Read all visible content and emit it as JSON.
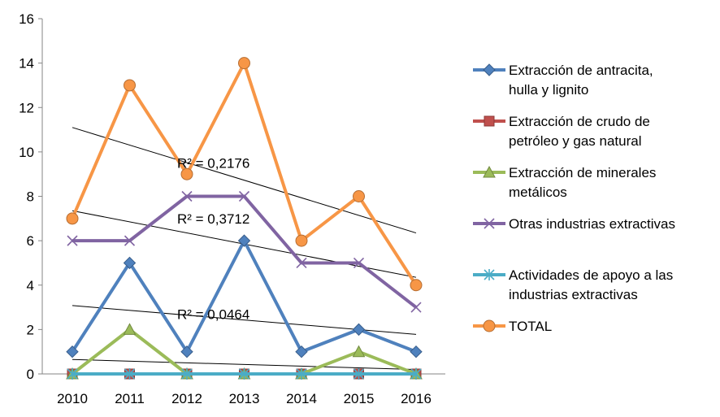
{
  "chart_data": {
    "type": "line",
    "x": [
      "2010",
      "2011",
      "2012",
      "2013",
      "2014",
      "2015",
      "2016"
    ],
    "ylim": [
      0,
      16
    ],
    "yticks": [
      "0",
      "2",
      "4",
      "6",
      "8",
      "10",
      "12",
      "14",
      "16"
    ],
    "grid": false,
    "legend_position": "right",
    "series": [
      {
        "name": "Extracción de antracita, hulla y lignito",
        "legend_lines": [
          "Extracción de antracita,",
          "hulla y lignito"
        ],
        "values": [
          1,
          5,
          1,
          6,
          1,
          2,
          1
        ],
        "color": "#4F81BD",
        "marker": "diamond"
      },
      {
        "name": "Extracción de crudo de petróleo y gas natural",
        "legend_lines": [
          " Extracción de crudo de",
          "petróleo y gas natural"
        ],
        "values": [
          0,
          0,
          0,
          0,
          0,
          0,
          0
        ],
        "color": "#C0504D",
        "marker": "square"
      },
      {
        "name": "Extracción de minerales metálicos",
        "legend_lines": [
          " Extracción de minerales",
          "metálicos"
        ],
        "values": [
          0,
          2,
          0,
          0,
          0,
          1,
          0
        ],
        "color": "#9BBB59",
        "marker": "triangle"
      },
      {
        "name": "Otras industrias extractivas",
        "legend_lines": [
          " Otras industrias extractivas"
        ],
        "values": [
          6,
          6,
          8,
          8,
          5,
          5,
          3
        ],
        "color": "#8064A2",
        "marker": "x"
      },
      {
        "name": "Actividades de apoyo a las industrias extractivas",
        "legend_lines": [
          " Actividades de apoyo a las",
          "industrias extractivas"
        ],
        "values": [
          0,
          0,
          0,
          0,
          0,
          0,
          0
        ],
        "color": "#4BACC6",
        "marker": "star"
      },
      {
        "name": "TOTAL",
        "legend_lines": [
          "TOTAL"
        ],
        "values": [
          7,
          13,
          9,
          14,
          6,
          8,
          4
        ],
        "color": "#F79646",
        "marker": "circle"
      }
    ],
    "trendlines": [
      {
        "series": "TOTAL",
        "start": 11.1,
        "end": 6.35,
        "r2_label": "R² = 0,2176",
        "label_year": "2012",
        "label_value": 9.5
      },
      {
        "series": "Otras industrias extractivas",
        "start": 7.35,
        "end": 4.35,
        "r2_label": "R² = 0,3712",
        "label_year": "2012",
        "label_value": 7.0
      },
      {
        "series": "Extracción de antracita, hulla y lignito",
        "start": 3.08,
        "end": 1.78,
        "r2_label": "R² = 0,0464",
        "label_year": "2012",
        "label_value": 2.7
      },
      {
        "series": "Extracción de minerales metálicos",
        "start": 0.65,
        "end": 0.2,
        "r2_label": "",
        "label_year": "",
        "label_value": 0
      }
    ]
  }
}
